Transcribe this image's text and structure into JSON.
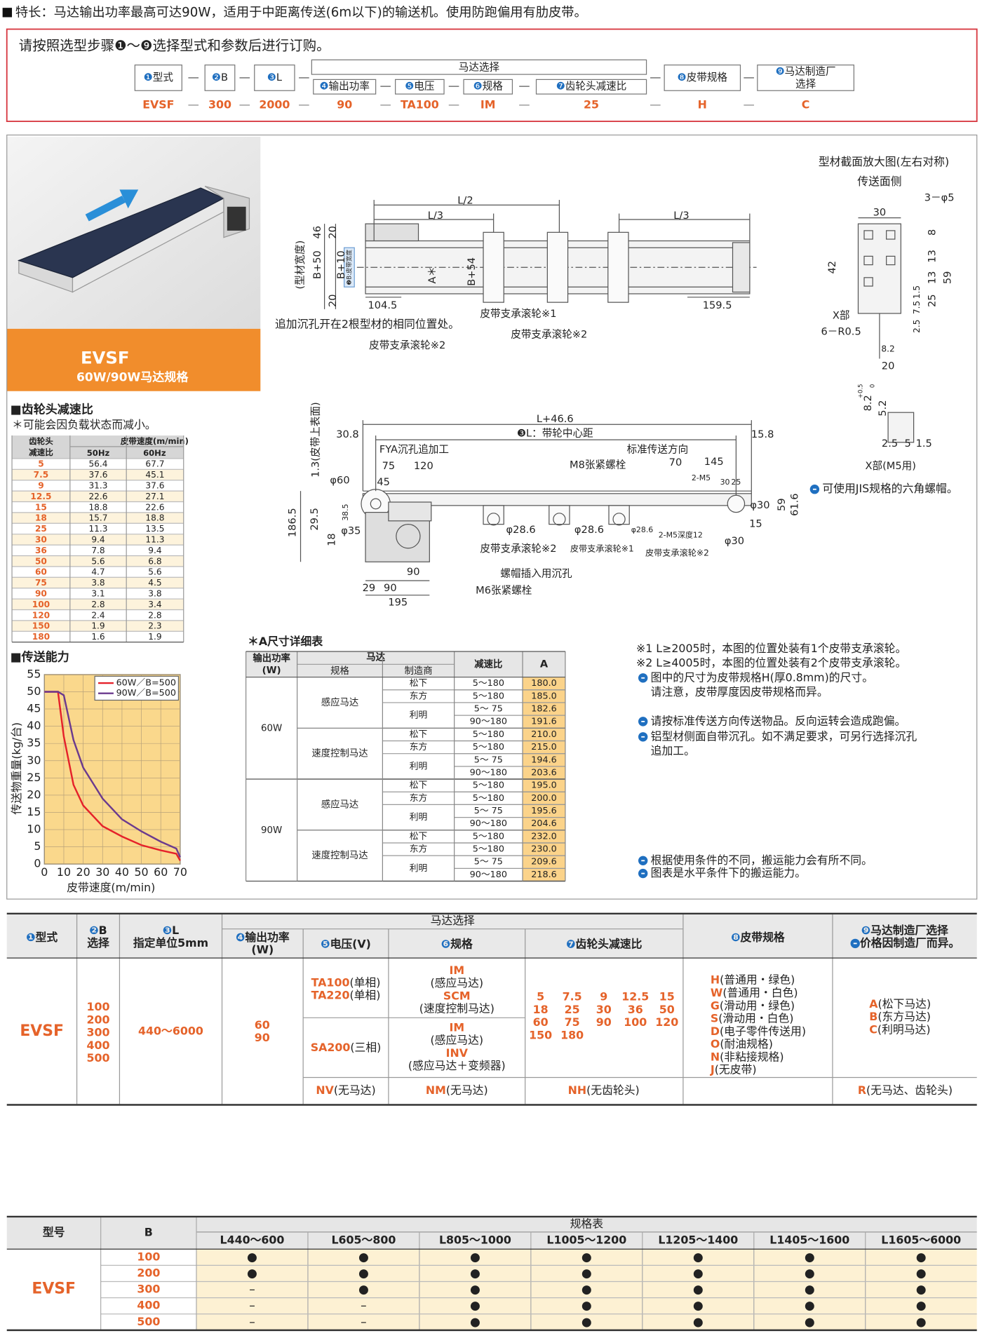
{
  "header": {
    "feature": "特长：马达输出功率最高可达90W，适用于中距离传送(6m以下)的输送机。使用防跑偏用有肋皮带。"
  },
  "order": {
    "instruction": "请按照选型步骤❶～❾选择型式和参数后进行订购。",
    "motor_group": "马达选择",
    "steps": [
      {
        "num": "❶",
        "label": "型式",
        "example": "EVSF"
      },
      {
        "num": "❷",
        "label": "B",
        "example": "300"
      },
      {
        "num": "❸",
        "label": "L",
        "example": "2000"
      },
      {
        "num": "❹",
        "label": "输出功率",
        "example": "90"
      },
      {
        "num": "❺",
        "label": "电压",
        "example": "TA100"
      },
      {
        "num": "❻",
        "label": "规格",
        "example": "IM"
      },
      {
        "num": "❼",
        "label": "齿轮头减速比",
        "example": "25"
      },
      {
        "num": "❽",
        "label": "皮带规格",
        "example": "H"
      },
      {
        "num": "❾",
        "label": [
          "马达制造厂",
          "选择"
        ],
        "example": "C"
      }
    ]
  },
  "product": {
    "model": "EVSF",
    "subtitle": "60W/90W马达规格"
  },
  "ratio_table": {
    "title": "■齿轮头减速比",
    "note": "＊可能会因负载状态而减小。",
    "headers": {
      "ratio": [
        "齿轮头",
        "减速比"
      ],
      "speed": "皮带速度(m/min)",
      "hz50": "50Hz",
      "hz60": "60Hz"
    },
    "rows": [
      [
        "5",
        "56.4",
        "67.7"
      ],
      [
        "7.5",
        "37.6",
        "45.1"
      ],
      [
        "9",
        "31.3",
        "37.6"
      ],
      [
        "12.5",
        "22.6",
        "27.1"
      ],
      [
        "15",
        "18.8",
        "22.6"
      ],
      [
        "18",
        "15.7",
        "18.8"
      ],
      [
        "25",
        "11.3",
        "13.5"
      ],
      [
        "30",
        "9.4",
        "11.3"
      ],
      [
        "36",
        "7.8",
        "9.4"
      ],
      [
        "50",
        "5.6",
        "6.8"
      ],
      [
        "60",
        "4.7",
        "5.6"
      ],
      [
        "75",
        "3.8",
        "4.5"
      ],
      [
        "90",
        "3.1",
        "3.8"
      ],
      [
        "100",
        "2.8",
        "3.4"
      ],
      [
        "120",
        "2.4",
        "2.8"
      ],
      [
        "150",
        "1.9",
        "2.3"
      ],
      [
        "180",
        "1.6",
        "1.9"
      ]
    ]
  },
  "chart_data": {
    "type": "line",
    "title": "■传送能力",
    "x_label": "皮带速度(m/min)",
    "y_label": "传送物重量(kg/台)",
    "x": [
      0,
      7,
      10,
      15,
      20,
      30,
      40,
      50,
      60,
      68,
      70
    ],
    "series": [
      {
        "name": "60W／B=500",
        "color": "#e5212a",
        "values": [
          50,
          50,
          37,
          23,
          17,
          11,
          8,
          5.5,
          4,
          3,
          1
        ]
      },
      {
        "name": "90W／B=500",
        "color": "#6b3a8e",
        "values": [
          50,
          50,
          49,
          36,
          28,
          19,
          13,
          9.5,
          6.5,
          4.5,
          2
        ]
      }
    ],
    "xlim": [
      0,
      70
    ],
    "ylim": [
      0,
      55
    ],
    "xticks": [
      0,
      10,
      20,
      30,
      40,
      50,
      60,
      70
    ],
    "yticks": [
      0,
      5,
      10,
      15,
      20,
      25,
      30,
      35,
      40,
      45,
      50,
      55
    ],
    "grid": true,
    "legend": "upper right",
    "background": "#fad88c"
  },
  "drawing": {
    "top_view": [
      "L/2",
      "L/3",
      "L/3",
      "(型材宽度)",
      "B+50",
      "B+10",
      "46",
      "20",
      "20",
      "A＊",
      "B+54",
      "104.5",
      "159.5",
      "追加沉孔开在2根型材的相同位置处。",
      "皮带支承滚轮※1",
      "皮带支承滚轮※2",
      "皮带支承滚轮※2",
      "❷B:皮带宽度"
    ],
    "side_view": [
      "L+46.6",
      "❸L：带轮中心距",
      "30.8",
      "15.8",
      "1.3(皮带上表面)",
      "FYA沉孔追加工",
      "标准传送方向",
      "75",
      "120",
      "M8张紧螺栓",
      "70",
      "145",
      "2-M5",
      "30",
      "25",
      "φ60",
      "45",
      "φ30",
      "59",
      "61.6",
      "186.5",
      "29.5",
      "38.5",
      "18",
      "φ35",
      "φ28.6",
      "φ28.6",
      "φ28.6",
      "15",
      "2-M5深度12",
      "φ30",
      "皮带支承滚轮※2",
      "皮带支承滚轮※1",
      "皮带支承滚轮※2",
      "90",
      "螺帽插入用沉孔",
      "M6张紧螺栓",
      "29",
      "90",
      "195"
    ],
    "section": [
      "型材截面放大图(左右对称)",
      "传送面侧",
      "30",
      "3－φ5",
      "42",
      "8",
      "13",
      "13",
      "59",
      "25",
      "1.5",
      "7.5",
      "2.5",
      "X部",
      "6－R0.5",
      "8.2",
      "20",
      "8.2",
      "+0.5",
      "0",
      "5.2",
      "2.5",
      "5",
      "1.5",
      "X部(M5用)",
      "可使用JIS规格的六角螺帽。"
    ]
  },
  "a_table": {
    "title": "＊A尺寸详细表",
    "headers": {
      "output": [
        "输出功率",
        "(W)"
      ],
      "motor": "马达",
      "spec": "规格",
      "maker": "制造商",
      "ratio": "减速比",
      "a": "A"
    },
    "groups": [
      {
        "output": "60W",
        "motors": [
          {
            "spec": "感应马达",
            "makers": [
              {
                "name": "松下",
                "rows": [
                  {
                    "ratio": "5～180",
                    "a": "180.0"
                  }
                ]
              },
              {
                "name": "东方",
                "rows": [
                  {
                    "ratio": "5～180",
                    "a": "185.0"
                  }
                ]
              },
              {
                "name": "利明",
                "rows": [
                  {
                    "ratio": "5～ 75",
                    "a": "182.6"
                  },
                  {
                    "ratio": "90～180",
                    "a": "191.6"
                  }
                ]
              }
            ]
          },
          {
            "spec": "速度控制马达",
            "makers": [
              {
                "name": "松下",
                "rows": [
                  {
                    "ratio": "5～180",
                    "a": "210.0"
                  }
                ]
              },
              {
                "name": "东方",
                "rows": [
                  {
                    "ratio": "5～180",
                    "a": "215.0"
                  }
                ]
              },
              {
                "name": "利明",
                "rows": [
                  {
                    "ratio": "5～ 75",
                    "a": "194.6"
                  },
                  {
                    "ratio": "90～180",
                    "a": "203.6"
                  }
                ]
              }
            ]
          }
        ]
      },
      {
        "output": "90W",
        "motors": [
          {
            "spec": "感应马达",
            "makers": [
              {
                "name": "松下",
                "rows": [
                  {
                    "ratio": "5～180",
                    "a": "195.0"
                  }
                ]
              },
              {
                "name": "东方",
                "rows": [
                  {
                    "ratio": "5～180",
                    "a": "200.0"
                  }
                ]
              },
              {
                "name": "利明",
                "rows": [
                  {
                    "ratio": "5～ 75",
                    "a": "195.6"
                  },
                  {
                    "ratio": "90～180",
                    "a": "204.6"
                  }
                ]
              }
            ]
          },
          {
            "spec": "速度控制马达",
            "makers": [
              {
                "name": "松下",
                "rows": [
                  {
                    "ratio": "5～180",
                    "a": "232.0"
                  }
                ]
              },
              {
                "name": "东方",
                "rows": [
                  {
                    "ratio": "5～180",
                    "a": "230.0"
                  }
                ]
              },
              {
                "name": "利明",
                "rows": [
                  {
                    "ratio": "5～ 75",
                    "a": "209.6"
                  },
                  {
                    "ratio": "90～180",
                    "a": "218.6"
                  }
                ]
              }
            ]
          }
        ]
      }
    ]
  },
  "notes": {
    "remarks": [
      "※1 L≥2005时，本图的位置处装有1个皮带支承滚轮。",
      "※2 L≥4005时，本图的位置处装有2个皮带支承滚轮。",
      "图中的尺寸为皮带规格H(厚0.8mm)的尺寸。",
      "请注意，皮带厚度因皮带规格而异。",
      "请按标准传送方向传送物品。反向运转会造成跑偏。",
      "铝型材侧面自带沉孔。如不满足要求，可另行选择沉孔",
      "追加工。"
    ],
    "capacity": [
      "根据使用条件的不同，搬运能力会有所不同。",
      "图表是水平条件下的搬运能力。"
    ]
  },
  "spec_table": {
    "motor_group": "马达选择",
    "headers": [
      {
        "num": "❶",
        "lines": [
          "型式"
        ]
      },
      {
        "num": "❷",
        "lines": [
          "B",
          "选择"
        ]
      },
      {
        "num": "❸",
        "lines": [
          "L",
          "指定单位5mm"
        ]
      },
      {
        "num": "❹",
        "lines": [
          "输出功率",
          "(W)"
        ]
      },
      {
        "num": "❺",
        "lines": [
          "电压(V)"
        ]
      },
      {
        "num": "❻",
        "lines": [
          "规格"
        ]
      },
      {
        "num": "❼",
        "lines": [
          "齿轮头减速比"
        ]
      },
      {
        "num": "❽",
        "lines": [
          "皮带规格"
        ]
      },
      {
        "num": "❾",
        "lines": [
          "马达制造厂选择",
          "价格因制造厂而异。"
        ]
      }
    ],
    "model": "EVSF",
    "b": [
      "100",
      "200",
      "300",
      "400",
      "500"
    ],
    "l": "440～6000",
    "output": [
      "60",
      "90"
    ],
    "voltage": [
      [
        {
          "code": "TA100",
          "desc": "(单相)"
        },
        {
          "code": "TA220",
          "desc": "(单相)"
        }
      ],
      [
        {
          "code": "SA200",
          "desc": "(三相)"
        }
      ]
    ],
    "spec": [
      [
        "IM",
        "(感应马达)",
        "SCM",
        "(速度控制马达)"
      ],
      [
        "IM",
        "(感应马达)",
        "INV",
        "(感应马达＋变频器)"
      ]
    ],
    "ratios": [
      "5",
      "7.5",
      "9",
      "12.5",
      "15",
      "18",
      "25",
      "30",
      "36",
      "50",
      "60",
      "75",
      "90",
      "100",
      "120",
      "150",
      "180"
    ],
    "belt": [
      {
        "code": "H",
        "desc": "(普通用・绿色)"
      },
      {
        "code": "W",
        "desc": "(普通用・白色)"
      },
      {
        "code": "G",
        "desc": "(滑动用・绿色)"
      },
      {
        "code": "S",
        "desc": "(滑动用・白色)"
      },
      {
        "code": "D",
        "desc": "(电子零件传送用)"
      },
      {
        "code": "O",
        "desc": "(耐油规格)"
      },
      {
        "code": "N",
        "desc": "(非粘接规格)"
      },
      {
        "code": "J",
        "desc": "(无皮带)"
      }
    ],
    "maker": [
      {
        "code": "A",
        "desc": "(松下马达)"
      },
      {
        "code": "B",
        "desc": "(东方马达)"
      },
      {
        "code": "C",
        "desc": "(利明马达)"
      }
    ],
    "none": {
      "voltage": {
        "code": "NV",
        "desc": "(无马达)"
      },
      "spec": {
        "code": "NM",
        "desc": "(无马达)"
      },
      "ratio": {
        "code": "NH",
        "desc": "(无齿轮头)"
      },
      "maker": {
        "code": "R",
        "desc": "(无马达、齿轮头)"
      }
    }
  },
  "availability": {
    "headers": {
      "model": "型号",
      "b": "B",
      "group": "规格表"
    },
    "l_ranges": [
      "L440～600",
      "L605～800",
      "L805～1000",
      "L1005～1200",
      "L1205～1400",
      "L1405～1600",
      "L1605～6000"
    ],
    "model": "EVSF",
    "rows": [
      {
        "b": "100",
        "marks": [
          "●",
          "●",
          "●",
          "●",
          "●",
          "●",
          "●"
        ]
      },
      {
        "b": "200",
        "marks": [
          "●",
          "●",
          "●",
          "●",
          "●",
          "●",
          "●"
        ]
      },
      {
        "b": "300",
        "marks": [
          "–",
          "●",
          "●",
          "●",
          "●",
          "●",
          "●"
        ]
      },
      {
        "b": "400",
        "marks": [
          "–",
          "–",
          "●",
          "●",
          "●",
          "●",
          "●"
        ]
      },
      {
        "b": "500",
        "marks": [
          "–",
          "–",
          "●",
          "●",
          "●",
          "●",
          "●"
        ]
      }
    ]
  }
}
